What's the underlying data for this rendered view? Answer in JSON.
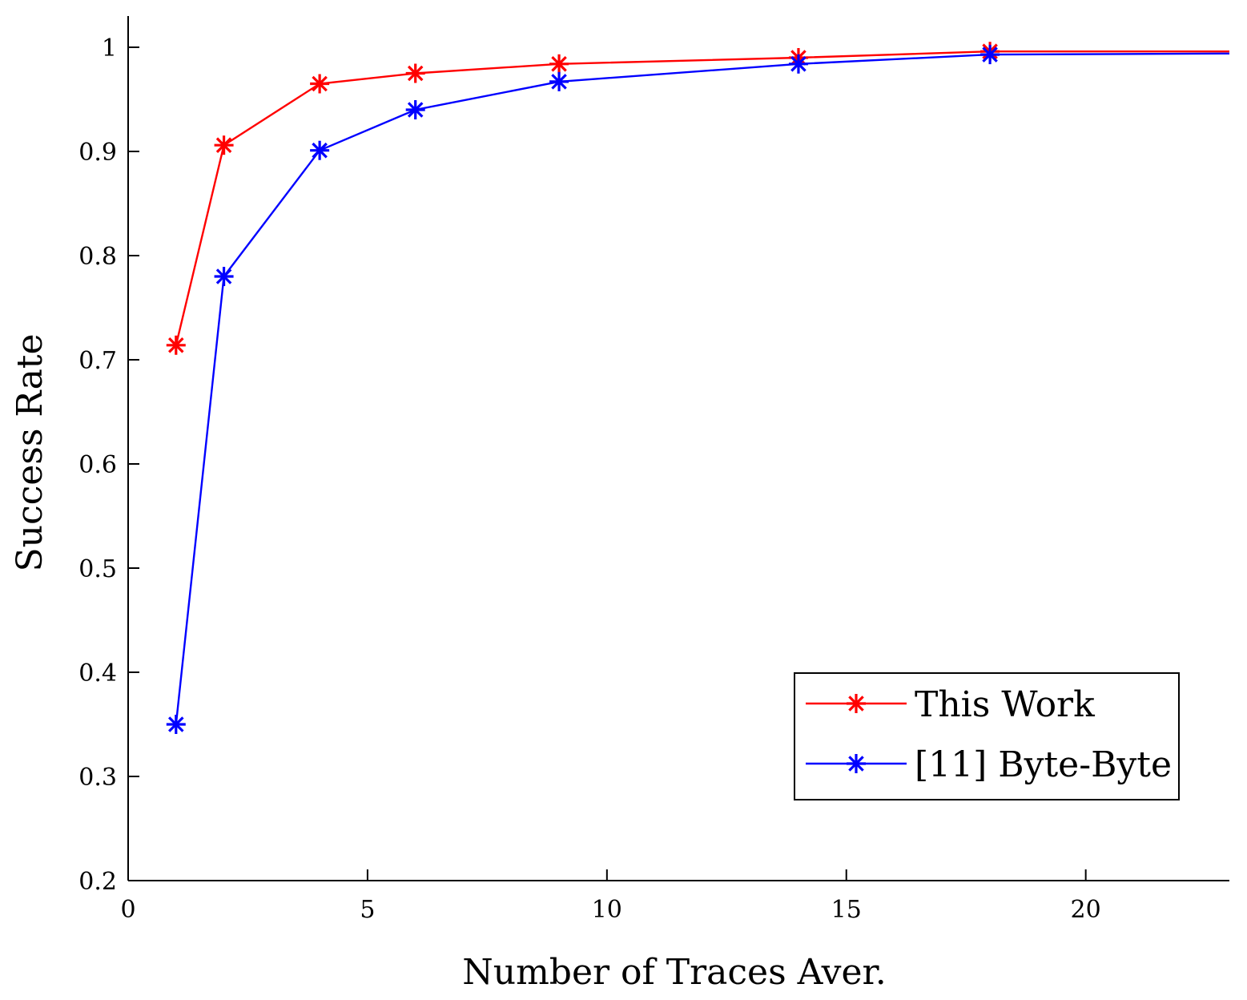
{
  "chart_data": {
    "type": "line",
    "title": "",
    "xlabel": "Number of Traces Aver.",
    "ylabel": "Success Rate",
    "xlim": [
      0,
      23
    ],
    "ylim": [
      0.2,
      1.03
    ],
    "x_ticks": [
      0,
      5,
      10,
      15,
      20
    ],
    "x_tick_labels": [
      "0",
      "5",
      "10",
      "15",
      "20"
    ],
    "y_ticks": [
      0.2,
      0.3,
      0.4,
      0.5,
      0.6,
      0.7,
      0.8,
      0.9,
      1.0
    ],
    "y_tick_labels": [
      "0.2",
      "0.3",
      "0.4",
      "0.5",
      "0.6",
      "0.7",
      "0.8",
      "0.9",
      "1"
    ],
    "grid": false,
    "legend_position": "bottom-right",
    "series": [
      {
        "name": "This Work",
        "color": "#ff0000",
        "marker": "asterisk",
        "x": [
          1,
          2,
          4,
          6,
          9,
          14,
          18,
          23
        ],
        "y": [
          0.714,
          0.906,
          0.965,
          0.975,
          0.984,
          0.99,
          0.996,
          0.996
        ],
        "marked": [
          true,
          true,
          true,
          true,
          true,
          true,
          true,
          false
        ]
      },
      {
        "name": "[11] Byte-Byte",
        "color": "#0000ff",
        "marker": "asterisk",
        "x": [
          1,
          2,
          4,
          6,
          9,
          14,
          18,
          23
        ],
        "y": [
          0.35,
          0.78,
          0.901,
          0.94,
          0.967,
          0.984,
          0.993,
          0.994
        ],
        "marked": [
          true,
          true,
          true,
          true,
          true,
          true,
          true,
          false
        ]
      }
    ]
  }
}
